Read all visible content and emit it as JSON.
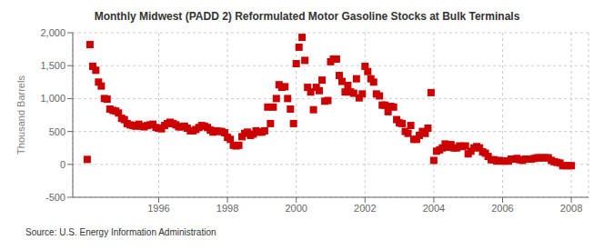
{
  "chart_data": {
    "type": "scatter",
    "title": "Monthly Midwest (PADD 2) Reformulated Motor Gasoline Stocks at Bulk Terminals",
    "ylabel": "Thousand Barrels",
    "source": "Source: U.S. Energy Information Administration",
    "color": "#cc0000",
    "marker": "square",
    "grid": true,
    "xlim": [
      1993.5,
      2008.5
    ],
    "ylim": [
      -500,
      2000
    ],
    "xticks": [
      1996,
      1998,
      2000,
      2002,
      2004,
      2006,
      2008
    ],
    "yticks": [
      -500,
      0,
      500,
      {
        "value": 1000,
        "label": "1,000"
      },
      {
        "value": 1500,
        "label": "1,500"
      },
      {
        "value": 2000,
        "label": "2,000"
      }
    ],
    "x": [
      1993.92,
      1994.0,
      1994.08,
      1994.17,
      1994.25,
      1994.33,
      1994.42,
      1994.5,
      1994.58,
      1994.67,
      1994.75,
      1994.83,
      1994.92,
      1995.0,
      1995.08,
      1995.17,
      1995.25,
      1995.33,
      1995.42,
      1995.5,
      1995.58,
      1995.67,
      1995.75,
      1995.83,
      1995.92,
      1996.0,
      1996.08,
      1996.17,
      1996.25,
      1996.33,
      1996.42,
      1996.5,
      1996.58,
      1996.67,
      1996.75,
      1996.83,
      1996.92,
      1997.0,
      1997.08,
      1997.17,
      1997.25,
      1997.33,
      1997.42,
      1997.5,
      1997.58,
      1997.67,
      1997.75,
      1997.83,
      1997.92,
      1998.0,
      1998.08,
      1998.17,
      1998.25,
      1998.33,
      1998.42,
      1998.5,
      1998.58,
      1998.67,
      1998.75,
      1998.83,
      1998.92,
      1999.0,
      1999.08,
      1999.17,
      1999.25,
      1999.33,
      1999.42,
      1999.5,
      1999.58,
      1999.67,
      1999.75,
      1999.83,
      1999.92,
      2000.0,
      2000.08,
      2000.17,
      2000.25,
      2000.33,
      2000.42,
      2000.5,
      2000.58,
      2000.67,
      2000.75,
      2000.83,
      2000.92,
      2001.0,
      2001.08,
      2001.17,
      2001.25,
      2001.33,
      2001.42,
      2001.5,
      2001.58,
      2001.67,
      2001.75,
      2001.83,
      2001.92,
      2002.0,
      2002.08,
      2002.17,
      2002.25,
      2002.33,
      2002.42,
      2002.5,
      2002.58,
      2002.67,
      2002.75,
      2002.83,
      2002.92,
      2003.0,
      2003.08,
      2003.17,
      2003.25,
      2003.33,
      2003.42,
      2003.5,
      2003.58,
      2003.67,
      2003.75,
      2003.83,
      2003.92,
      2004.0,
      2004.08,
      2004.17,
      2004.25,
      2004.33,
      2004.42,
      2004.5,
      2004.58,
      2004.67,
      2004.75,
      2004.83,
      2004.92,
      2005.0,
      2005.08,
      2005.17,
      2005.25,
      2005.33,
      2005.42,
      2005.5,
      2005.58,
      2005.67,
      2005.75,
      2005.83,
      2005.92,
      2006.0,
      2006.08,
      2006.17,
      2006.25,
      2006.33,
      2006.42,
      2006.5,
      2006.58,
      2006.67,
      2006.75,
      2006.83,
      2006.92,
      2007.0,
      2007.08,
      2007.17,
      2007.25,
      2007.33,
      2007.42,
      2007.5,
      2007.58,
      2007.67,
      2007.75,
      2007.83,
      2007.92,
      2008.0
    ],
    "values": [
      75,
      1820,
      1490,
      1430,
      1250,
      1190,
      1000,
      990,
      840,
      820,
      810,
      780,
      700,
      680,
      620,
      600,
      590,
      580,
      610,
      580,
      570,
      590,
      600,
      610,
      560,
      550,
      540,
      590,
      620,
      640,
      620,
      600,
      570,
      570,
      580,
      550,
      510,
      510,
      530,
      560,
      590,
      580,
      560,
      520,
      490,
      510,
      500,
      500,
      480,
      410,
      380,
      290,
      280,
      290,
      420,
      470,
      490,
      440,
      460,
      510,
      490,
      490,
      510,
      870,
      620,
      870,
      1000,
      1210,
      1170,
      1180,
      1000,
      840,
      620,
      1530,
      1780,
      1930,
      1580,
      1170,
      1100,
      830,
      1170,
      1120,
      1280,
      960,
      970,
      1560,
      1600,
      1600,
      1350,
      1260,
      1100,
      1200,
      1100,
      1080,
      1300,
      1010,
      1070,
      1490,
      1410,
      1300,
      1250,
      1070,
      1040,
      900,
      900,
      800,
      880,
      870,
      680,
      630,
      620,
      500,
      470,
      590,
      380,
      380,
      440,
      500,
      470,
      550,
      1090,
      60,
      200,
      220,
      250,
      310,
      260,
      300,
      250,
      250,
      280,
      270,
      280,
      160,
      200,
      250,
      270,
      250,
      190,
      170,
      120,
      70,
      70,
      50,
      60,
      50,
      50,
      50,
      80,
      80,
      90,
      70,
      60,
      80,
      80,
      80,
      90,
      100,
      100,
      100,
      100,
      100,
      60,
      40,
      30,
      20,
      -20,
      -20,
      -20,
      -20
    ]
  }
}
